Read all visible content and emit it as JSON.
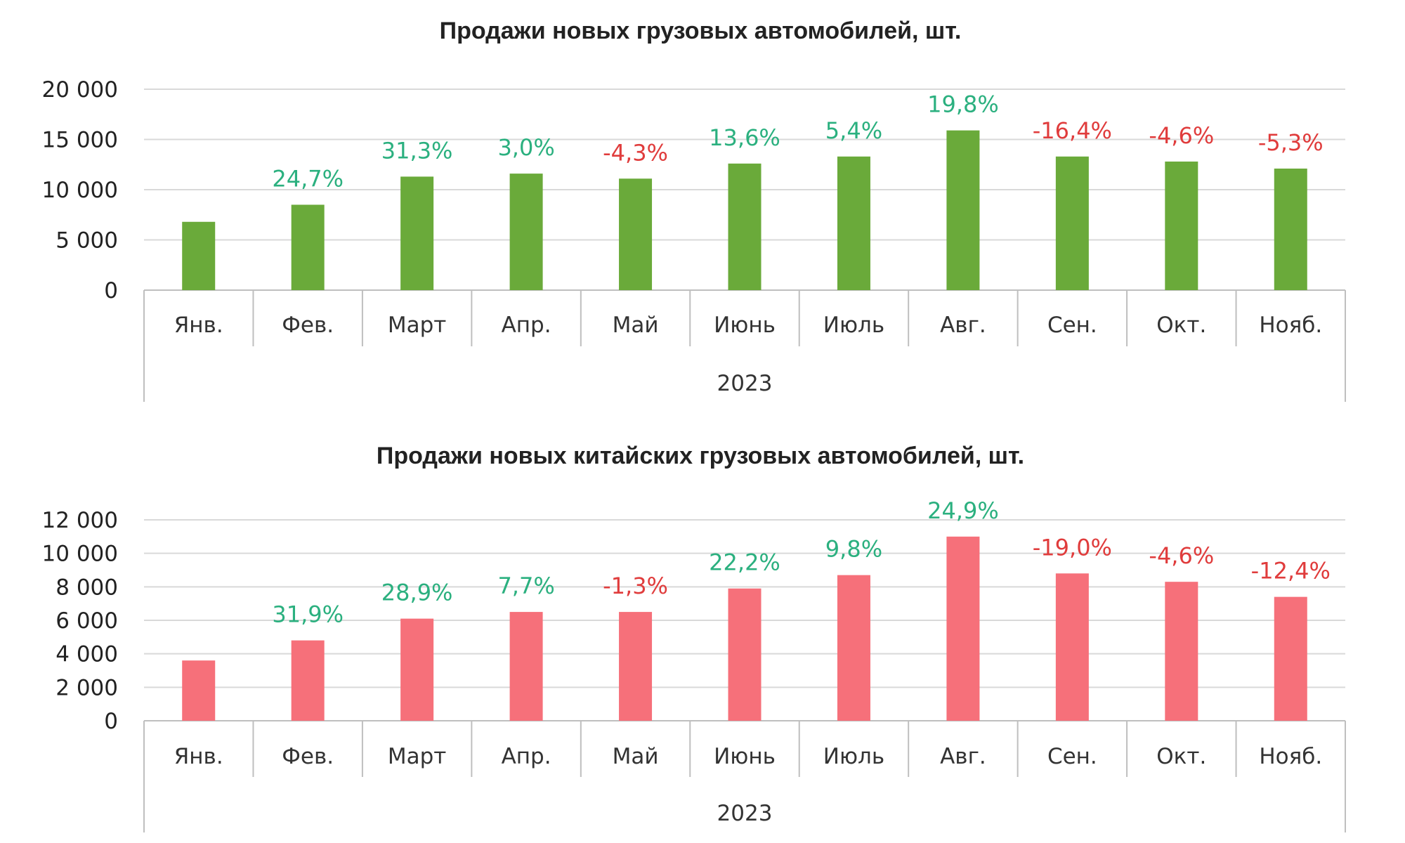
{
  "chart_data": [
    {
      "type": "bar",
      "title": "Продажи новых  грузовых автомобилей, шт.",
      "categories": [
        "Янв.",
        "Фев.",
        "Март",
        "Апр.",
        "Май",
        "Июнь",
        "Июль",
        "Авг.",
        "Сен.",
        "Окт.",
        "Нояб."
      ],
      "group_label": "2023",
      "values": [
        6800,
        8500,
        11300,
        11600,
        11100,
        12600,
        13300,
        15900,
        13300,
        12800,
        12100
      ],
      "change_labels": [
        "",
        "24,7%",
        "31,3%",
        "3,0%",
        "-4,3%",
        "13,6%",
        "5,4%",
        "19,8%",
        "-16,4%",
        "-4,6%",
        "-5,3%"
      ],
      "yticks": [
        "0",
        "5 000",
        "10 000",
        "15 000",
        "20 000"
      ],
      "ylim": [
        0,
        20000
      ],
      "grid": true,
      "bar_color": "#6aaa3a",
      "positive_color": "#2bb07f",
      "negative_color": "#e03c3c"
    },
    {
      "type": "bar",
      "title": "Продажи новых китайских грузовых автомобилей, шт.",
      "categories": [
        "Янв.",
        "Фев.",
        "Март",
        "Апр.",
        "Май",
        "Июнь",
        "Июль",
        "Авг.",
        "Сен.",
        "Окт.",
        "Нояб."
      ],
      "group_label": "2023",
      "values": [
        3600,
        4800,
        6100,
        6500,
        6500,
        7900,
        8700,
        11000,
        8800,
        8300,
        7400
      ],
      "change_labels": [
        "",
        "31,9%",
        "28,9%",
        "7,7%",
        "-1,3%",
        "22,2%",
        "9,8%",
        "24,9%",
        "-19,0%",
        "-4,6%",
        "-12,4%"
      ],
      "yticks": [
        "0",
        "2 000",
        "4 000",
        "6 000",
        "8 000",
        "10 000",
        "12 000"
      ],
      "ylim": [
        0,
        12000
      ],
      "grid": true,
      "bar_color": "#f6707a",
      "positive_color": "#2bb07f",
      "negative_color": "#e03c3c"
    }
  ]
}
